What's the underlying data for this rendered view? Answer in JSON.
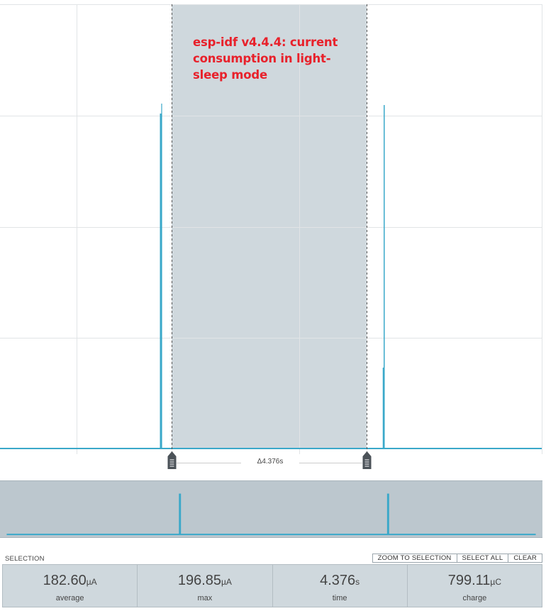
{
  "annotation": {
    "text": "esp-idf v4.4.4: current consumption in light-sleep mode"
  },
  "cursor": {
    "delta_label": "Δ4.376s"
  },
  "selection": {
    "label": "SELECTION"
  },
  "toolbar": {
    "zoom_to_selection": "ZOOM TO SELECTION",
    "select_all": "SELECT ALL",
    "clear": "CLEAR"
  },
  "stats": [
    {
      "value": "182.60",
      "unit": "µA",
      "name": "average"
    },
    {
      "value": "196.85",
      "unit": "µA",
      "name": "max"
    },
    {
      "value": "4.376",
      "unit": "s",
      "name": "time"
    },
    {
      "value": "799.11",
      "unit": "µC",
      "name": "charge"
    }
  ],
  "colors": {
    "trace": "#3aa8c9",
    "selection_fill": "#c9d3d9",
    "annotation": "#e8212b"
  }
}
